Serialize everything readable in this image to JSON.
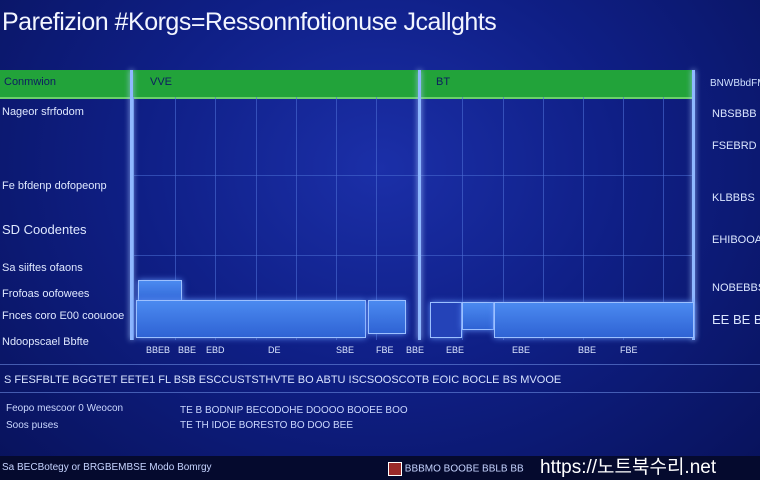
{
  "title": "Parefizion #Korgs=Ressonnfotionuse Jcallghts",
  "header": {
    "col1": "Conmwion",
    "col2": "VVE",
    "col3": "BT",
    "right": "BNWBbdFM"
  },
  "left_rows": [
    "Nageor sfrfodom",
    "Fe bfdenp dofopeonp",
    "SD Coodentes",
    "Sa siiftes ofaons",
    "Frofoas oofowees",
    "Fnces coro E00 coouooe",
    "Ndoopscael Bbfte"
  ],
  "right_rows": [
    "NBSBBB",
    "FSEBRD",
    "KLBBBS",
    "EHIBOOA",
    "NOBEBBS",
    "EE BE BO"
  ],
  "cells": [
    "BBEB",
    "BBE",
    "EBD",
    "DE",
    "SBE",
    "FBE",
    "BBE",
    "EBE",
    "EBE",
    "BBE",
    "FBE"
  ],
  "summary": "S FESFBLTE BGGTET EETE1 FL BSB ESCCUSTSTHVTE BO ABTU ISCSOOSCOTB EOIC BOCLE BS MVOOE",
  "notes": {
    "line1_left": "Feopo mescoor 0 Weocon",
    "line2_left": "Soos puses",
    "line1_mid": "TE B BODNIP BECODOHE DOOOO BOOEE BOO",
    "line2_mid": "TE TH IDOE BORESTO BO DOO BEE"
  },
  "footer": {
    "left": "Sa BECBotegy or BRGBEMBSE Modo Bomrgy",
    "mid": "BBBMO BOOBE BBLB BB"
  },
  "watermark": "https://노트북수리.net",
  "colors": {
    "background": "#0f1f86",
    "header": "#22a33a",
    "bar": "#3b73e0"
  }
}
